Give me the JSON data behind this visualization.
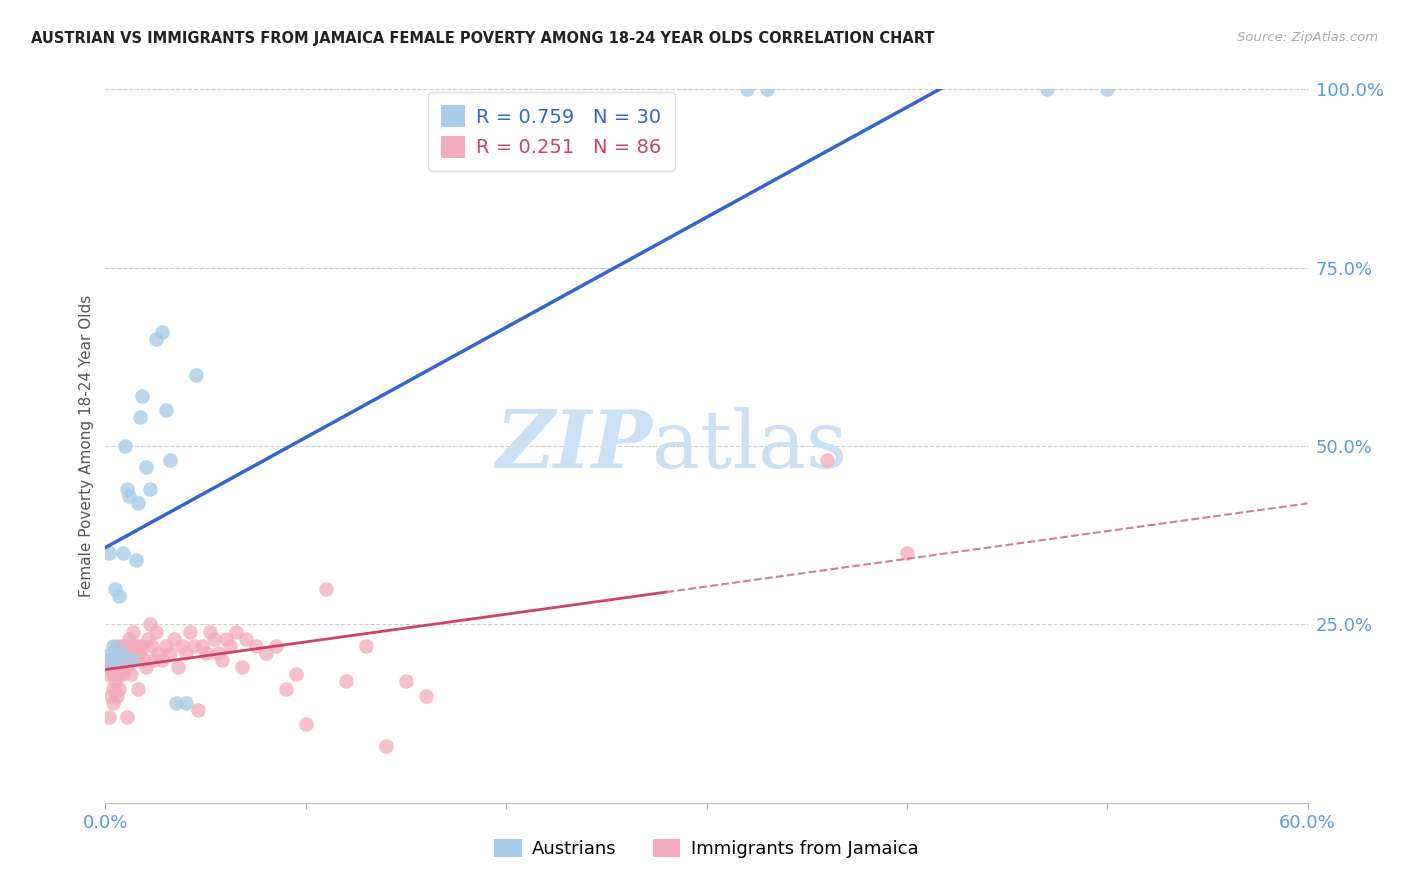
{
  "title": "AUSTRIAN VS IMMIGRANTS FROM JAMAICA FEMALE POVERTY AMONG 18-24 YEAR OLDS CORRELATION CHART",
  "source": "Source: ZipAtlas.com",
  "ylabel": "Female Poverty Among 18-24 Year Olds",
  "xlim": [
    0.0,
    0.6
  ],
  "ylim": [
    0.0,
    1.05
  ],
  "color_austrians": "#a8cce8",
  "color_jamaica": "#f2aabc",
  "color_line_austrians": "#3366cc",
  "color_line_jamaica": "#cc4466",
  "color_line_jamaica_dashed": "#d08090",
  "legend1_text": "R = 0.759   N = 30",
  "legend2_text": "R = 0.251   N = 86",
  "watermark_zip": "ZIP",
  "watermark_atlas": "atlas",
  "aus_R": 0.759,
  "aus_N": 30,
  "jam_R": 0.251,
  "jam_N": 86,
  "austrians_x": [
    0.001,
    0.002,
    0.003,
    0.004,
    0.005,
    0.006,
    0.007,
    0.008,
    0.009,
    0.01,
    0.011,
    0.012,
    0.013,
    0.015,
    0.016,
    0.017,
    0.018,
    0.02,
    0.022,
    0.025,
    0.028,
    0.03,
    0.032,
    0.035,
    0.04,
    0.045,
    0.32,
    0.33,
    0.47,
    0.5
  ],
  "austrians_y": [
    0.2,
    0.35,
    0.21,
    0.22,
    0.3,
    0.2,
    0.29,
    0.21,
    0.35,
    0.5,
    0.44,
    0.43,
    0.2,
    0.34,
    0.42,
    0.54,
    0.57,
    0.47,
    0.44,
    0.65,
    0.66,
    0.55,
    0.48,
    0.14,
    0.14,
    0.6,
    1.0,
    1.0,
    1.0,
    1.0
  ],
  "jamaica_x": [
    0.001,
    0.002,
    0.002,
    0.003,
    0.003,
    0.004,
    0.004,
    0.005,
    0.005,
    0.006,
    0.006,
    0.006,
    0.007,
    0.007,
    0.008,
    0.008,
    0.009,
    0.009,
    0.01,
    0.01,
    0.011,
    0.012,
    0.012,
    0.013,
    0.014,
    0.015,
    0.016,
    0.017,
    0.018,
    0.019,
    0.02,
    0.021,
    0.022,
    0.023,
    0.024,
    0.025,
    0.026,
    0.028,
    0.03,
    0.032,
    0.034,
    0.036,
    0.038,
    0.04,
    0.042,
    0.044,
    0.046,
    0.048,
    0.05,
    0.052,
    0.054,
    0.056,
    0.058,
    0.06,
    0.062,
    0.065,
    0.068,
    0.07,
    0.075,
    0.08,
    0.085,
    0.09,
    0.095,
    0.1,
    0.11,
    0.12,
    0.13,
    0.14,
    0.15,
    0.16,
    0.002,
    0.003,
    0.004,
    0.005,
    0.006,
    0.007,
    0.008,
    0.009,
    0.01,
    0.011,
    0.012,
    0.013,
    0.014,
    0.016,
    0.36,
    0.4
  ],
  "jamaica_y": [
    0.18,
    0.19,
    0.2,
    0.2,
    0.15,
    0.18,
    0.14,
    0.21,
    0.17,
    0.2,
    0.22,
    0.15,
    0.18,
    0.21,
    0.19,
    0.22,
    0.2,
    0.18,
    0.2,
    0.21,
    0.19,
    0.2,
    0.21,
    0.18,
    0.22,
    0.2,
    0.22,
    0.21,
    0.22,
    0.2,
    0.19,
    0.23,
    0.25,
    0.22,
    0.2,
    0.24,
    0.21,
    0.2,
    0.22,
    0.21,
    0.23,
    0.19,
    0.22,
    0.21,
    0.24,
    0.22,
    0.13,
    0.22,
    0.21,
    0.24,
    0.23,
    0.21,
    0.2,
    0.23,
    0.22,
    0.24,
    0.19,
    0.23,
    0.22,
    0.21,
    0.22,
    0.16,
    0.18,
    0.11,
    0.3,
    0.17,
    0.22,
    0.08,
    0.17,
    0.15,
    0.12,
    0.19,
    0.16,
    0.18,
    0.19,
    0.16,
    0.21,
    0.19,
    0.22,
    0.12,
    0.23,
    0.22,
    0.24,
    0.16,
    0.48,
    0.35
  ]
}
